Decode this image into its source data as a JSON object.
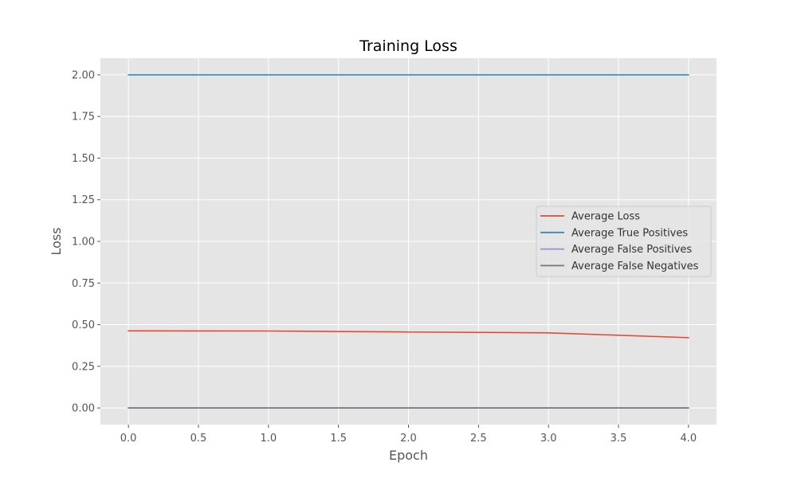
{
  "chart_data": {
    "type": "line",
    "title": "Training Loss",
    "xlabel": "Epoch",
    "ylabel": "Loss",
    "x": [
      0,
      1,
      2,
      3,
      4
    ],
    "xlim": [
      -0.2,
      4.2
    ],
    "ylim": [
      -0.1,
      2.1
    ],
    "xticks": [
      "0.0",
      "0.5",
      "1.0",
      "1.5",
      "2.0",
      "2.5",
      "3.0",
      "3.5",
      "4.0"
    ],
    "yticks": [
      "0.00",
      "0.25",
      "0.50",
      "0.75",
      "1.00",
      "1.25",
      "1.50",
      "1.75",
      "2.00"
    ],
    "grid": true,
    "legend_position": "center-right",
    "series": [
      {
        "name": "Average Loss",
        "color": "#E24A33",
        "values": [
          0.463,
          0.462,
          0.456,
          0.451,
          0.422
        ]
      },
      {
        "name": "Average True Positives",
        "color": "#348ABD",
        "values": [
          2.0,
          2.0,
          2.0,
          2.0,
          2.0
        ]
      },
      {
        "name": "Average False Positives",
        "color": "#988ED5",
        "values": [
          0.0,
          0.0,
          0.0,
          0.0,
          0.0
        ]
      },
      {
        "name": "Average False Negatives",
        "color": "#777777",
        "values": [
          0.0,
          0.0,
          0.0,
          0.0,
          0.0
        ]
      }
    ]
  }
}
